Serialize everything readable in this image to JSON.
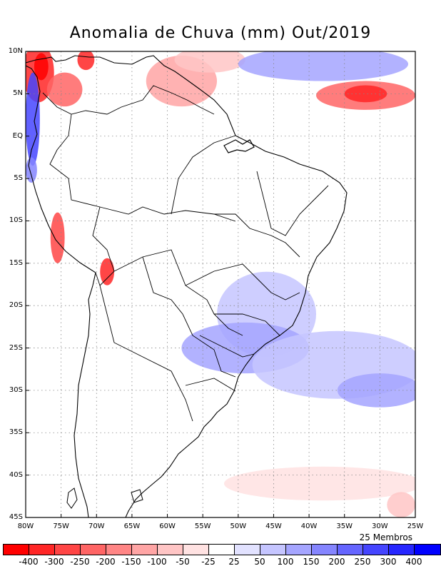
{
  "title": "Anomalia de Chuva (mm) Out/2019",
  "footer": {
    "members": "25 Membros"
  },
  "axes": {
    "lat_labels": [
      "10N",
      "5N",
      "EQ",
      "5S",
      "10S",
      "15S",
      "20S",
      "25S",
      "30S",
      "35S",
      "40S",
      "45S"
    ],
    "lat_values": [
      10,
      5,
      0,
      -5,
      -10,
      -15,
      -20,
      -25,
      -30,
      -35,
      -40,
      -45
    ],
    "lon_labels": [
      "80W",
      "75W",
      "70W",
      "65W",
      "60W",
      "55W",
      "50W",
      "45W",
      "40W",
      "35W",
      "30W",
      "25W"
    ],
    "lon_values": [
      -80,
      -75,
      -70,
      -65,
      -60,
      -55,
      -50,
      -45,
      -40,
      -35,
      -30,
      -25
    ],
    "lon_range": [
      -80,
      -25
    ],
    "lat_range": [
      -45,
      10
    ],
    "grid": true
  },
  "colorbar": {
    "labels": [
      "-400",
      "-300",
      "-250",
      "-200",
      "-150",
      "-100",
      "-50",
      "-25",
      "25",
      "50",
      "100",
      "150",
      "200",
      "250",
      "300",
      "400"
    ],
    "colors": [
      "#ff0000",
      "#ff2626",
      "#ff4545",
      "#ff6565",
      "#ff8585",
      "#ffa5a5",
      "#ffc5c5",
      "#ffe2e2",
      "#ffffff",
      "#e2e2ff",
      "#c5c5ff",
      "#a5a5ff",
      "#8585ff",
      "#6565ff",
      "#4545ff",
      "#2626ff",
      "#0000ff"
    ]
  },
  "anomaly_regions": [
    {
      "name": "nw-colombia-positive",
      "lon": -78.2,
      "lat": 7.5,
      "rx": 2.2,
      "ry": 3.5,
      "color": "#ff2626"
    },
    {
      "name": "colombia-core",
      "lon": -77.8,
      "lat": 8.2,
      "rx": 1.0,
      "ry": 1.6,
      "color": "#ff0000"
    },
    {
      "name": "pacific-colombia-negative",
      "lon": -79.0,
      "lat": 2.0,
      "rx": 1.0,
      "ry": 5.5,
      "color": "#4545ff"
    },
    {
      "name": "ecuador-negative",
      "lon": -79.2,
      "lat": -4.0,
      "rx": 0.8,
      "ry": 1.5,
      "color": "#8585ff"
    },
    {
      "name": "venezuela-north",
      "lon": -71.5,
      "lat": 9.0,
      "rx": 1.2,
      "ry": 1.2,
      "color": "#ff2626"
    },
    {
      "name": "colombia-east",
      "lon": -74.5,
      "lat": 5.5,
      "rx": 2.5,
      "ry": 2.0,
      "color": "#ff6565"
    },
    {
      "name": "guyana-positive",
      "lon": -58,
      "lat": 6.5,
      "rx": 5,
      "ry": 3,
      "color": "#ffa5a5"
    },
    {
      "name": "venezuela-caribbean",
      "lon": -54,
      "lat": 9,
      "rx": 5,
      "ry": 1.5,
      "color": "#ffc5c5"
    },
    {
      "name": "atlantic-equatorial-red",
      "lon": -32,
      "lat": 4.8,
      "rx": 7,
      "ry": 1.7,
      "color": "#ff6565"
    },
    {
      "name": "atlantic-equatorial-core",
      "lon": -32,
      "lat": 5,
      "rx": 3,
      "ry": 1,
      "color": "#ff2626"
    },
    {
      "name": "atlantic-north-blue",
      "lon": -38,
      "lat": 8.5,
      "rx": 12,
      "ry": 2,
      "color": "#a5a5ff"
    },
    {
      "name": "peru-coast-red",
      "lon": -75.5,
      "lat": -12,
      "rx": 1,
      "ry": 3,
      "color": "#ff4545"
    },
    {
      "name": "bolivia-red",
      "lon": -68.5,
      "lat": -16,
      "rx": 1,
      "ry": 1.6,
      "color": "#ff2626"
    },
    {
      "name": "se-brazil-blue",
      "lon": -46,
      "lat": -21,
      "rx": 7,
      "ry": 5,
      "color": "#c5c5ff"
    },
    {
      "name": "south-brazil-blue",
      "lon": -49,
      "lat": -25,
      "rx": 9,
      "ry": 3,
      "color": "#a5a5ff"
    },
    {
      "name": "atlantic-south-blue",
      "lon": -36,
      "lat": -27,
      "rx": 12,
      "ry": 4,
      "color": "#c5c5ff"
    },
    {
      "name": "atlantic-south-blue2",
      "lon": -30,
      "lat": -30,
      "rx": 6,
      "ry": 2,
      "color": "#a5a5ff"
    },
    {
      "name": "south-atlantic-red",
      "lon": -38,
      "lat": -41,
      "rx": 14,
      "ry": 2,
      "color": "#ffe2e2"
    },
    {
      "name": "patagonia-red",
      "lon": -27,
      "lat": -43.5,
      "rx": 2,
      "ry": 1.5,
      "color": "#ffc5c5"
    }
  ]
}
